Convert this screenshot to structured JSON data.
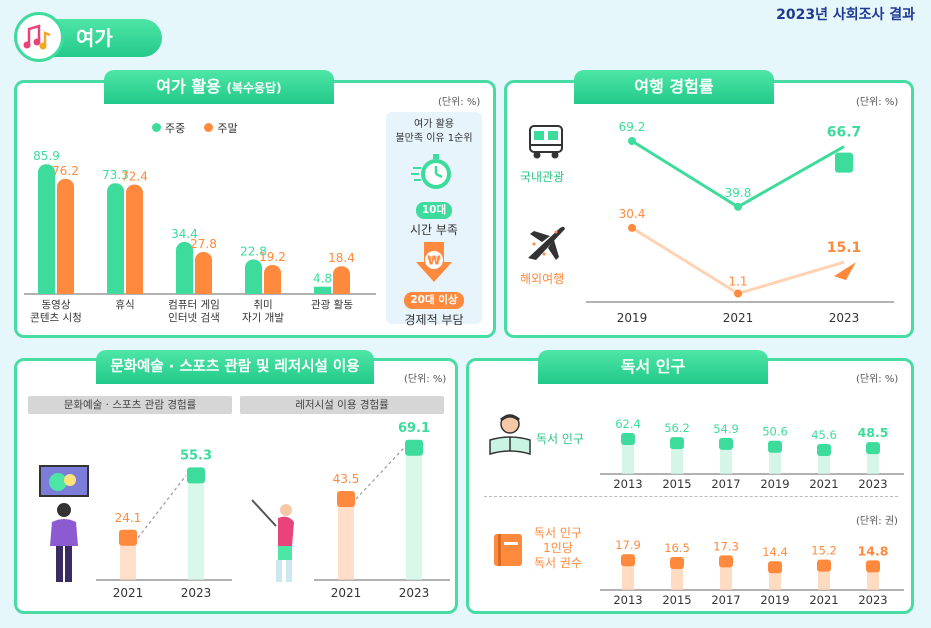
{
  "header": {
    "section_title": "여가",
    "report_title": "2023년 사회조사 결과"
  },
  "colors": {
    "green": "#3ddc9c",
    "orange": "#ff8a3d",
    "light_orange": "#ffd2b3",
    "light_green": "#c9f3e2",
    "navy": "#1f3a93"
  },
  "leisure": {
    "tab_title": "여가 활용",
    "tab_subtitle": "(복수응답)",
    "unit": "(단위: %)",
    "legend": [
      "주중",
      "주말"
    ],
    "reason": {
      "heading_line1": "여가 활용",
      "heading_line2": "불만족 이유 1순위",
      "group1_tag": "10대",
      "group1_reason": "시간 부족",
      "group2_tag": "20대 이상",
      "group2_reason": "경제적 부담"
    }
  },
  "travel": {
    "tab_title": "여행 경험률",
    "unit": "(단위: %)",
    "domestic_label": "국내관광",
    "overseas_label": "해외여행"
  },
  "culture": {
    "tab_title": "문화예술 · 스포츠 관람 및 레저시설 이용",
    "unit": "(단위: %)",
    "sub1": "문화예술 · 스포츠 관람 경험률",
    "sub2": "레저시설 이용 경험률"
  },
  "reading": {
    "tab_title": "독서 인구",
    "unit1": "(단위: %)",
    "unit2": "(단위: 권)",
    "row1_label": "독서 인구",
    "row2_label_line1": "독서 인구",
    "row2_label_line2": "1인당",
    "row2_label_line3": "독서 권수"
  },
  "chart_data": [
    {
      "type": "bar",
      "categories": [
        "동영상\n콘텐츠 시청",
        "휴식",
        "컴퓨터 게임\n인터넷 검색",
        "취미\n자기 개발",
        "관광 활동"
      ],
      "series": [
        {
          "name": "주중",
          "values": [
            85.9,
            73.3,
            34.4,
            22.8,
            4.8
          ]
        },
        {
          "name": "주말",
          "values": [
            76.2,
            72.4,
            27.8,
            19.2,
            18.4
          ]
        }
      ],
      "title": "여가 활용 (복수응답)",
      "ylim": [
        0,
        90
      ]
    },
    {
      "type": "line",
      "x": [
        "2019",
        "2021",
        "2023"
      ],
      "series": [
        {
          "name": "국내관광",
          "values": [
            69.2,
            39.8,
            66.7
          ]
        },
        {
          "name": "해외여행",
          "values": [
            30.4,
            1.1,
            15.1
          ]
        }
      ],
      "title": "여행 경험률",
      "ylim": [
        0,
        75
      ]
    },
    {
      "type": "bar",
      "categories": [
        "2021",
        "2023"
      ],
      "values": [
        24.1,
        55.3
      ],
      "title": "문화예술 · 스포츠 관람 경험률",
      "ylim": [
        0,
        75
      ]
    },
    {
      "type": "bar",
      "categories": [
        "2021",
        "2023"
      ],
      "values": [
        43.5,
        69.1
      ],
      "title": "레저시설 이용 경험률",
      "ylim": [
        0,
        75
      ]
    },
    {
      "type": "bar",
      "categories": [
        "2013",
        "2015",
        "2017",
        "2019",
        "2021",
        "2023"
      ],
      "values": [
        62.4,
        56.2,
        54.9,
        50.6,
        45.6,
        48.5
      ],
      "title": "독서 인구",
      "ylim": [
        0,
        70
      ]
    },
    {
      "type": "bar",
      "categories": [
        "2013",
        "2015",
        "2017",
        "2019",
        "2021",
        "2023"
      ],
      "values": [
        17.9,
        16.5,
        17.3,
        14.4,
        15.2,
        14.8
      ],
      "title": "1인당 독서 권수",
      "ylim": [
        0,
        20
      ]
    }
  ]
}
